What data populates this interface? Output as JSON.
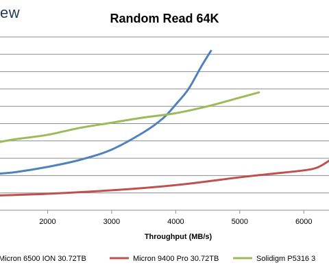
{
  "logo_text": "ew",
  "chart_data": {
    "type": "line",
    "title": "Random Read 64K",
    "xlabel": "Throughput (MB/s)",
    "ylabel": "",
    "x_ticks": [
      2000,
      3000,
      4000,
      5000,
      6000
    ],
    "grid": true,
    "legend_position": "bottom",
    "series": [
      {
        "name": "Micron 6500 ION 30.72TB",
        "color": "#4f81bd",
        "points": [
          [
            1200,
            2.1
          ],
          [
            1500,
            2.2
          ],
          [
            2000,
            2.5
          ],
          [
            2500,
            2.9
          ],
          [
            3000,
            3.5
          ],
          [
            3500,
            4.5
          ],
          [
            3800,
            5.3
          ],
          [
            4000,
            6.1
          ],
          [
            4200,
            7.0
          ],
          [
            4400,
            8.3
          ],
          [
            4550,
            9.2
          ]
        ]
      },
      {
        "name": "Micron 9400 Pro 30.72TB",
        "color": "#c0504d",
        "points": [
          [
            1200,
            0.85
          ],
          [
            2000,
            0.95
          ],
          [
            3000,
            1.15
          ],
          [
            4000,
            1.45
          ],
          [
            5000,
            1.9
          ],
          [
            5500,
            2.1
          ],
          [
            6000,
            2.3
          ],
          [
            6200,
            2.45
          ],
          [
            6350,
            2.75
          ],
          [
            6480,
            3.1
          ]
        ]
      },
      {
        "name": "Solidigm P5316 3",
        "color": "#9bbb59",
        "points": [
          [
            1200,
            3.9
          ],
          [
            1500,
            4.1
          ],
          [
            2000,
            4.35
          ],
          [
            2500,
            4.75
          ],
          [
            3000,
            5.05
          ],
          [
            3500,
            5.35
          ],
          [
            4000,
            5.6
          ],
          [
            4500,
            6.0
          ],
          [
            5000,
            6.5
          ],
          [
            5300,
            6.8
          ]
        ]
      }
    ]
  }
}
